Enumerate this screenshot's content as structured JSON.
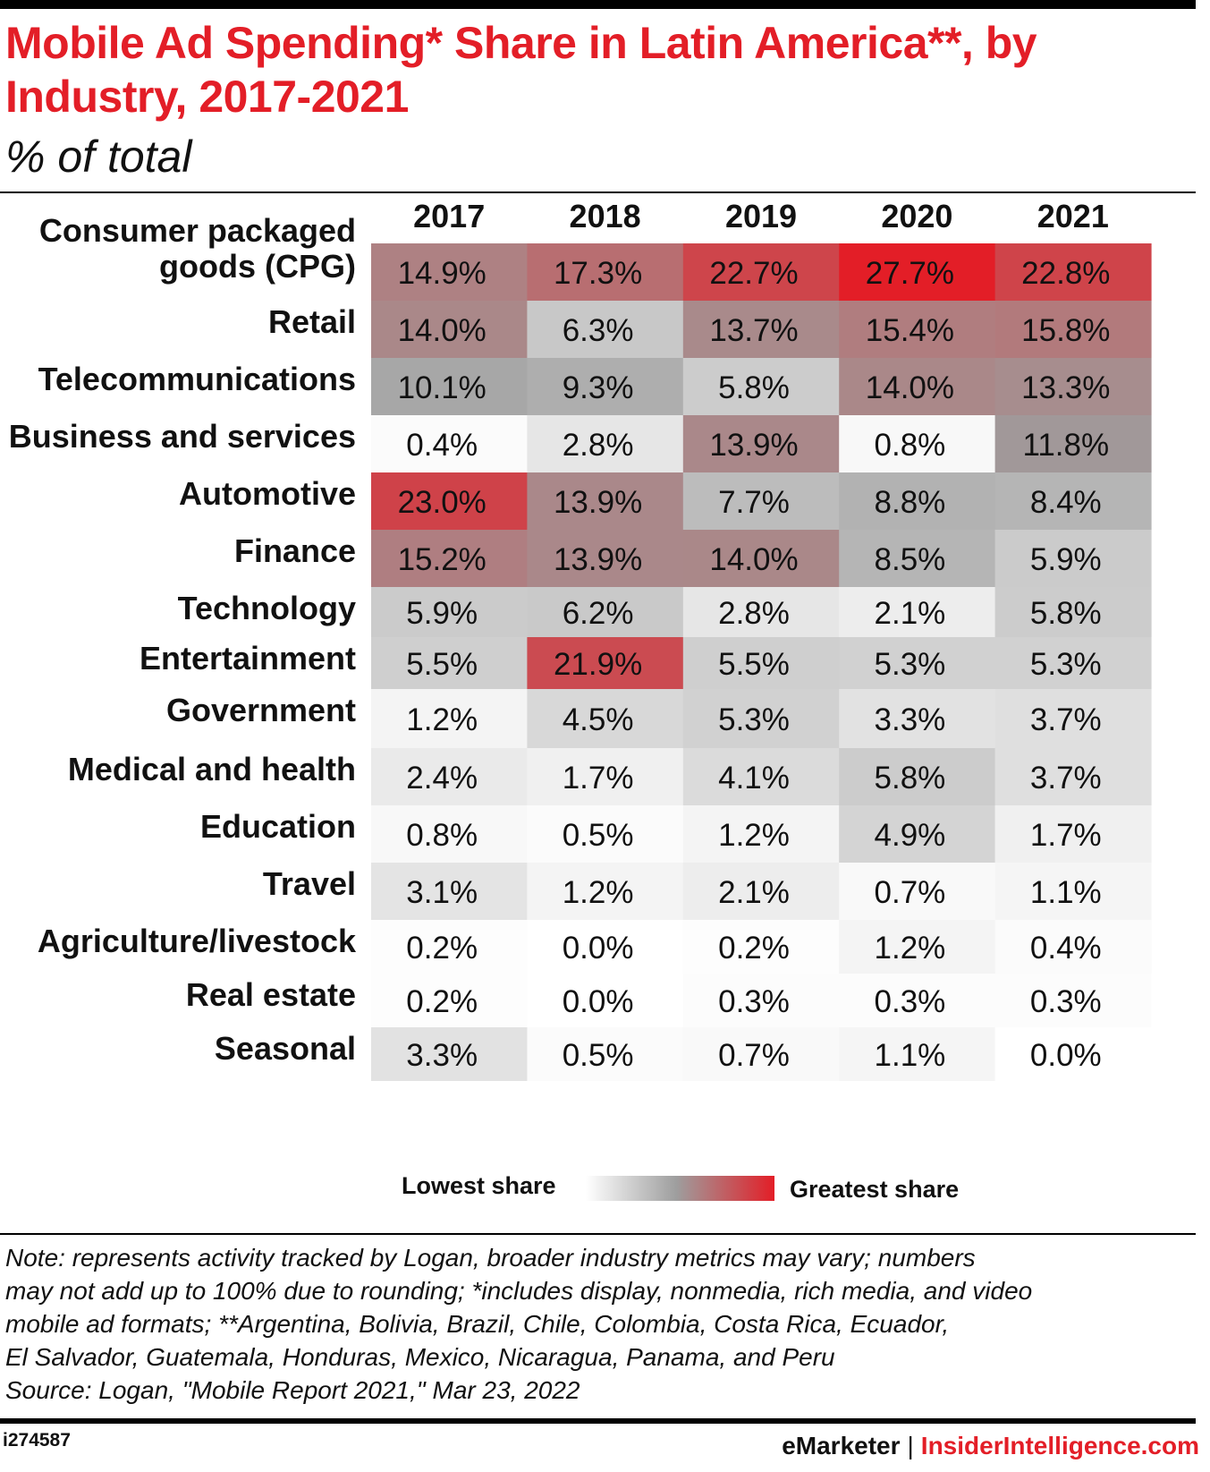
{
  "header": {
    "title": "Mobile Ad Spending* Share in Latin America**, by Industry, 2017-2021",
    "subtitle": "% of total"
  },
  "colors": {
    "accent": "#e31e27",
    "scale_low": "#ffffff",
    "scale_mid": "#9e9e9e",
    "scale_high": "#e31e27"
  },
  "chart_data": {
    "type": "heatmap",
    "title": "Mobile Ad Spending* Share in Latin America**, by Industry, 2017-2021",
    "subtitle": "% of total",
    "columns": [
      "2017",
      "2018",
      "2019",
      "2020",
      "2021"
    ],
    "rows": [
      "Consumer packaged goods (CPG)",
      "Retail",
      "Telecommunications",
      "Business and services",
      "Automotive",
      "Finance",
      "Technology",
      "Entertainment",
      "Government",
      "Medical and health",
      "Education",
      "Travel",
      "Agriculture/livestock",
      "Real estate",
      "Seasonal"
    ],
    "values": [
      [
        14.9,
        17.3,
        22.7,
        27.7,
        22.8
      ],
      [
        14.0,
        6.3,
        13.7,
        15.4,
        15.8
      ],
      [
        10.1,
        9.3,
        5.8,
        14.0,
        13.3
      ],
      [
        0.4,
        2.8,
        13.9,
        0.8,
        11.8
      ],
      [
        23.0,
        13.9,
        7.7,
        8.8,
        8.4
      ],
      [
        15.2,
        13.9,
        14.0,
        8.5,
        5.9
      ],
      [
        5.9,
        6.2,
        2.8,
        2.1,
        5.8
      ],
      [
        5.5,
        21.9,
        5.5,
        5.3,
        5.3
      ],
      [
        1.2,
        4.5,
        5.3,
        3.3,
        3.7
      ],
      [
        2.4,
        1.7,
        4.1,
        5.8,
        3.7
      ],
      [
        0.8,
        0.5,
        1.2,
        4.9,
        1.7
      ],
      [
        3.1,
        1.2,
        2.1,
        0.7,
        1.1
      ],
      [
        0.2,
        0.0,
        0.2,
        1.2,
        0.4
      ],
      [
        0.2,
        0.0,
        0.3,
        0.3,
        0.3
      ],
      [
        3.3,
        0.5,
        0.7,
        1.1,
        0.0
      ]
    ],
    "value_suffix": "%",
    "legend": {
      "low_label": "Lowest share",
      "high_label": "Greatest share",
      "placement": "bottom-center"
    }
  },
  "note": {
    "lines": [
      "Note: represents activity tracked by Logan, broader industry metrics may vary; numbers",
      "may not add up to 100% due to rounding; *includes display, nonmedia, rich media, and video",
      "mobile ad formats; **Argentina, Bolivia, Brazil, Chile, Colombia, Costa Rica, Ecuador,",
      "El Salvador, Guatemala, Honduras, Mexico, Nicaragua, Panama, and Peru",
      "Source: Logan, \"Mobile Report 2021,\" Mar 23, 2022"
    ]
  },
  "footer": {
    "chart_id": "i274587",
    "brand_emarketer": "eMarketer",
    "separator": "|",
    "brand_insider": "InsiderIntelligence.com"
  }
}
